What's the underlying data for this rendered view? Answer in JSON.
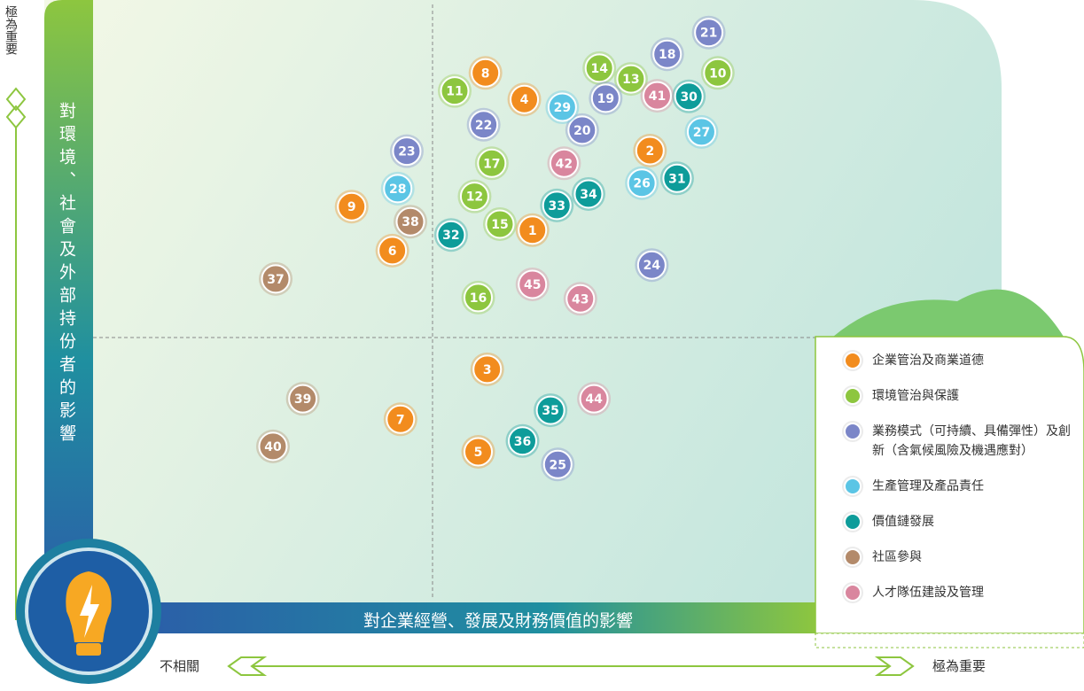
{
  "chart_data": {
    "type": "scatter",
    "y_label": "對環境、社會及外部持份者的影響",
    "x_label": "對企業經營、發展及財務價值的影響",
    "y_high_label": "極為重要",
    "x_low_label": "不相關",
    "x_high_label": "極為重要",
    "xlim": [
      0,
      100
    ],
    "ylim": [
      0,
      100
    ],
    "series": [
      {
        "name": "企業管治及商業道德",
        "color": "#f28c1e",
        "labels": [
          1,
          2,
          3,
          4,
          5,
          6,
          7,
          8,
          9
        ],
        "x": [
          48.6,
          61.6,
          43.6,
          47.7,
          42.6,
          33.1,
          34.0,
          43.4,
          28.6
        ],
        "y": [
          61.8,
          75.0,
          38.7,
          83.5,
          25.0,
          58.4,
          30.4,
          87.9,
          65.7
        ]
      },
      {
        "name": "環境管治與保護",
        "color": "#8dc63f",
        "labels": [
          10,
          11,
          12,
          13,
          14,
          15,
          16,
          17
        ],
        "x": [
          69.1,
          40.0,
          42.2,
          59.5,
          56.0,
          45.0,
          42.6,
          44.1
        ],
        "y": [
          87.9,
          84.9,
          67.4,
          86.9,
          88.7,
          62.8,
          50.6,
          72.9
        ]
      },
      {
        "name": "業務模式（可持續、具備彈性）及創新（含氣候風險及機遇應對）",
        "color": "#7b86c8",
        "labels": [
          18,
          19,
          20,
          21,
          22,
          23,
          24,
          25
        ],
        "x": [
          63.5,
          56.7,
          54.1,
          68.1,
          43.2,
          34.7,
          61.8,
          51.4
        ],
        "y": [
          91.0,
          83.7,
          78.4,
          94.6,
          79.3,
          74.9,
          56.0,
          22.9
        ]
      },
      {
        "name": "生產管理及產品責任",
        "color": "#5bc5e5",
        "labels": [
          26,
          27,
          28,
          29
        ],
        "x": [
          60.7,
          67.3,
          33.7,
          51.9
        ],
        "y": [
          69.6,
          78.1,
          68.7,
          82.2
        ]
      },
      {
        "name": "價值鏈發展",
        "color": "#0e9c9a",
        "labels": [
          30,
          31,
          32,
          33,
          34,
          35,
          36
        ],
        "x": [
          65.9,
          64.6,
          39.6,
          51.3,
          54.8,
          50.6,
          47.5
        ],
        "y": [
          84.0,
          70.4,
          61.0,
          65.9,
          67.8,
          31.9,
          26.8
        ]
      },
      {
        "name": "社區參與",
        "color": "#b38a6a",
        "labels": [
          37,
          38,
          39,
          40
        ],
        "x": [
          20.2,
          35.1,
          23.2,
          19.9
        ],
        "y": [
          53.7,
          63.2,
          33.8,
          25.9
        ]
      },
      {
        "name": "人才隊伍建設及管理",
        "color": "#d9869e",
        "labels": [
          41,
          42,
          43,
          44,
          45
        ],
        "x": [
          62.4,
          52.1,
          53.9,
          55.4,
          48.6
        ],
        "y": [
          84.1,
          72.9,
          50.4,
          33.8,
          52.8
        ]
      }
    ]
  }
}
